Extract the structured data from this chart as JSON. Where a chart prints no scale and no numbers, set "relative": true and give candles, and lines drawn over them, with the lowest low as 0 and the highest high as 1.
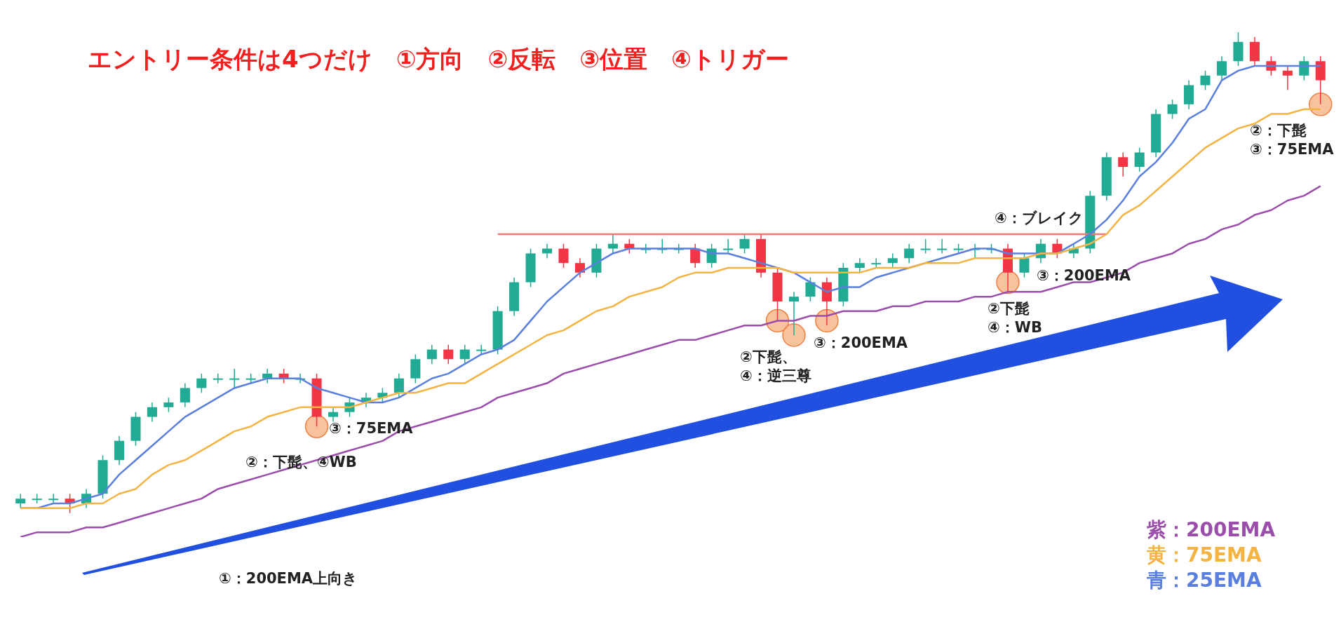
{
  "chart_data": {
    "type": "candlestick",
    "title": "エントリー条件は4つだけ　①方向　②反転　③位置　④トリガー",
    "relative": true,
    "legend": "bottom right",
    "categories": [
      null,
      null,
      null,
      null,
      null,
      null,
      null,
      null,
      null,
      null,
      null,
      null,
      null,
      null,
      null,
      null,
      null,
      null,
      null,
      null,
      null,
      null,
      null,
      null,
      null,
      null,
      null,
      null,
      null,
      null,
      null,
      null,
      null,
      null,
      null,
      null,
      null,
      null,
      null,
      null,
      null,
      null,
      null,
      null,
      null,
      null,
      null,
      null,
      null,
      null,
      null,
      null,
      null,
      null,
      null,
      null,
      null,
      null,
      null,
      null,
      null,
      null,
      null,
      null,
      null,
      null,
      null,
      null,
      null,
      null,
      null,
      null,
      null,
      null,
      null,
      null,
      null,
      null,
      null,
      null
    ],
    "ohlc": [
      [
        0.02,
        0.04,
        0.01,
        0.03
      ],
      [
        0.03,
        0.04,
        0.02,
        0.03
      ],
      [
        0.03,
        0.04,
        0.02,
        0.03
      ],
      [
        0.03,
        0.04,
        0,
        0.02
      ],
      [
        0.02,
        0.05,
        0.01,
        0.04
      ],
      [
        0.04,
        0.12,
        0.03,
        0.11
      ],
      [
        0.11,
        0.16,
        0.1,
        0.15
      ],
      [
        0.15,
        0.21,
        0.14,
        0.2
      ],
      [
        0.2,
        0.23,
        0.19,
        0.22
      ],
      [
        0.22,
        0.24,
        0.21,
        0.23
      ],
      [
        0.23,
        0.27,
        0.22,
        0.26
      ],
      [
        0.26,
        0.29,
        0.25,
        0.28
      ],
      [
        0.28,
        0.29,
        0.27,
        0.28
      ],
      [
        0.28,
        0.3,
        0.26,
        0.28
      ],
      [
        0.28,
        0.29,
        0.27,
        0.28
      ],
      [
        0.28,
        0.3,
        0.27,
        0.29
      ],
      [
        0.29,
        0.3,
        0.27,
        0.28
      ],
      [
        0.28,
        0.29,
        0.27,
        0.28
      ],
      [
        0.28,
        0.29,
        0.18,
        0.2
      ],
      [
        0.2,
        0.22,
        0.19,
        0.21
      ],
      [
        0.21,
        0.24,
        0.2,
        0.23
      ],
      [
        0.23,
        0.25,
        0.22,
        0.24
      ],
      [
        0.24,
        0.26,
        0.23,
        0.25
      ],
      [
        0.25,
        0.29,
        0.24,
        0.28
      ],
      [
        0.28,
        0.33,
        0.27,
        0.32
      ],
      [
        0.32,
        0.35,
        0.31,
        0.34
      ],
      [
        0.34,
        0.35,
        0.31,
        0.32
      ],
      [
        0.32,
        0.35,
        0.31,
        0.34
      ],
      [
        0.34,
        0.35,
        0.33,
        0.34
      ],
      [
        0.34,
        0.43,
        0.33,
        0.42
      ],
      [
        0.42,
        0.49,
        0.41,
        0.48
      ],
      [
        0.48,
        0.55,
        0.47,
        0.54
      ],
      [
        0.54,
        0.56,
        0.53,
        0.55
      ],
      [
        0.55,
        0.56,
        0.51,
        0.52
      ],
      [
        0.52,
        0.53,
        0.49,
        0.5
      ],
      [
        0.5,
        0.56,
        0.49,
        0.55
      ],
      [
        0.55,
        0.58,
        0.54,
        0.56
      ],
      [
        0.56,
        0.57,
        0.54,
        0.55
      ],
      [
        0.55,
        0.56,
        0.54,
        0.55
      ],
      [
        0.55,
        0.57,
        0.54,
        0.55
      ],
      [
        0.55,
        0.56,
        0.54,
        0.55
      ],
      [
        0.55,
        0.56,
        0.51,
        0.52
      ],
      [
        0.52,
        0.56,
        0.51,
        0.55
      ],
      [
        0.55,
        0.57,
        0.54,
        0.55
      ],
      [
        0.55,
        0.58,
        0.54,
        0.57
      ],
      [
        0.57,
        0.58,
        0.49,
        0.5
      ],
      [
        0.5,
        0.51,
        0.4,
        0.44
      ],
      [
        0.44,
        0.46,
        0.37,
        0.45
      ],
      [
        0.45,
        0.49,
        0.44,
        0.48
      ],
      [
        0.48,
        0.49,
        0.39,
        0.44
      ],
      [
        0.44,
        0.52,
        0.43,
        0.51
      ],
      [
        0.51,
        0.53,
        0.5,
        0.52
      ],
      [
        0.52,
        0.53,
        0.51,
        0.52
      ],
      [
        0.52,
        0.54,
        0.51,
        0.53
      ],
      [
        0.53,
        0.56,
        0.52,
        0.55
      ],
      [
        0.55,
        0.57,
        0.54,
        0.55
      ],
      [
        0.55,
        0.57,
        0.54,
        0.55
      ],
      [
        0.55,
        0.56,
        0.54,
        0.55
      ],
      [
        0.55,
        0.56,
        0.53,
        0.55
      ],
      [
        0.55,
        0.56,
        0.54,
        0.55
      ],
      [
        0.55,
        0.56,
        0.46,
        0.5
      ],
      [
        0.5,
        0.54,
        0.49,
        0.53
      ],
      [
        0.53,
        0.57,
        0.52,
        0.56
      ],
      [
        0.56,
        0.57,
        0.53,
        0.54
      ],
      [
        0.54,
        0.56,
        0.53,
        0.55
      ],
      [
        0.55,
        0.67,
        0.54,
        0.66
      ],
      [
        0.66,
        0.75,
        0.65,
        0.74
      ],
      [
        0.74,
        0.75,
        0.7,
        0.72
      ],
      [
        0.72,
        0.76,
        0.71,
        0.75
      ],
      [
        0.75,
        0.84,
        0.74,
        0.83
      ],
      [
        0.83,
        0.86,
        0.82,
        0.85
      ],
      [
        0.85,
        0.9,
        0.84,
        0.89
      ],
      [
        0.89,
        0.92,
        0.88,
        0.91
      ],
      [
        0.91,
        0.95,
        0.9,
        0.94
      ],
      [
        0.94,
        1.0,
        0.93,
        0.98
      ],
      [
        0.98,
        0.99,
        0.93,
        0.94
      ],
      [
        0.94,
        0.95,
        0.91,
        0.92
      ],
      [
        0.92,
        0.93,
        0.88,
        0.91
      ],
      [
        0.91,
        0.95,
        0.9,
        0.94
      ],
      [
        0.94,
        0.95,
        0.85,
        0.9
      ]
    ],
    "colors": [
      "#22ab94",
      "#22ab94",
      "#22ab94",
      "#f23645",
      "#22ab94",
      "#22ab94",
      "#22ab94",
      "#22ab94",
      "#22ab94",
      "#22ab94",
      "#22ab94",
      "#22ab94",
      "#22ab94",
      "#22ab94",
      "#22ab94",
      "#22ab94",
      "#f23645",
      "#22ab94",
      "#f23645",
      "#22ab94",
      "#22ab94",
      "#22ab94",
      "#22ab94",
      "#22ab94",
      "#22ab94",
      "#22ab94",
      "#f23645",
      "#22ab94",
      "#22ab94",
      "#22ab94",
      "#22ab94",
      "#22ab94",
      "#22ab94",
      "#f23645",
      "#f23645",
      "#22ab94",
      "#22ab94",
      "#f23645",
      "#22ab94",
      "#22ab94",
      "#22ab94",
      "#f23645",
      "#22ab94",
      "#22ab94",
      "#22ab94",
      "#f23645",
      "#f23645",
      "#22ab94",
      "#22ab94",
      "#f23645",
      "#22ab94",
      "#22ab94",
      "#22ab94",
      "#22ab94",
      "#22ab94",
      "#22ab94",
      "#22ab94",
      "#22ab94",
      "#22ab94",
      "#22ab94",
      "#f23645",
      "#22ab94",
      "#22ab94",
      "#f23645",
      "#22ab94",
      "#22ab94",
      "#22ab94",
      "#f23645",
      "#22ab94",
      "#22ab94",
      "#22ab94",
      "#22ab94",
      "#22ab94",
      "#22ab94",
      "#22ab94",
      "#f23645",
      "#f23645",
      "#f23645",
      "#22ab94",
      "#f23645"
    ],
    "series": [
      {
        "name": "紫：200EMA",
        "type": "line",
        "color": "#9b4dab",
        "values": [
          -0.05,
          -0.04,
          -0.04,
          -0.04,
          -0.03,
          -0.03,
          -0.02,
          -0.01,
          0,
          0.01,
          0.02,
          0.03,
          0.05,
          0.06,
          0.07,
          0.08,
          0.09,
          0.1,
          0.11,
          0.12,
          0.13,
          0.14,
          0.15,
          0.17,
          0.18,
          0.19,
          0.2,
          0.21,
          0.22,
          0.24,
          0.25,
          0.26,
          0.27,
          0.29,
          0.3,
          0.31,
          0.32,
          0.33,
          0.34,
          0.35,
          0.36,
          0.36,
          0.37,
          0.38,
          0.39,
          0.39,
          0.4,
          0.4,
          0.41,
          0.41,
          0.42,
          0.42,
          0.42,
          0.43,
          0.43,
          0.44,
          0.44,
          0.44,
          0.45,
          0.45,
          0.46,
          0.46,
          0.46,
          0.47,
          0.48,
          0.48,
          0.49,
          0.5,
          0.52,
          0.53,
          0.54,
          0.56,
          0.57,
          0.59,
          0.6,
          0.62,
          0.63,
          0.65,
          0.66,
          0.68
        ]
      },
      {
        "name": "黄：75EMA",
        "type": "line",
        "color": "#f5b342",
        "values": [
          0.01,
          0.01,
          0.01,
          0.01,
          0.02,
          0.02,
          0.04,
          0.05,
          0.08,
          0.1,
          0.11,
          0.13,
          0.15,
          0.17,
          0.18,
          0.2,
          0.21,
          0.22,
          0.22,
          0.22,
          0.22,
          0.23,
          0.24,
          0.25,
          0.25,
          0.26,
          0.27,
          0.27,
          0.29,
          0.31,
          0.33,
          0.35,
          0.37,
          0.38,
          0.4,
          0.42,
          0.43,
          0.45,
          0.46,
          0.47,
          0.49,
          0.5,
          0.5,
          0.51,
          0.51,
          0.51,
          0.51,
          0.5,
          0.5,
          0.5,
          0.5,
          0.5,
          0.51,
          0.51,
          0.51,
          0.52,
          0.52,
          0.52,
          0.53,
          0.53,
          0.53,
          0.53,
          0.54,
          0.54,
          0.55,
          0.56,
          0.58,
          0.62,
          0.64,
          0.67,
          0.7,
          0.73,
          0.76,
          0.78,
          0.8,
          0.81,
          0.83,
          0.83,
          0.84,
          0.84
        ]
      },
      {
        "name": "青：25EMA",
        "type": "line",
        "color": "#5b7fde",
        "values": [
          0.01,
          0.01,
          0.02,
          0.02,
          0.03,
          0.04,
          0.08,
          0.11,
          0.14,
          0.17,
          0.2,
          0.22,
          0.24,
          0.26,
          0.27,
          0.28,
          0.28,
          0.28,
          0.26,
          0.25,
          0.24,
          0.23,
          0.23,
          0.24,
          0.26,
          0.28,
          0.29,
          0.31,
          0.33,
          0.34,
          0.36,
          0.4,
          0.44,
          0.47,
          0.5,
          0.52,
          0.54,
          0.55,
          0.55,
          0.55,
          0.55,
          0.55,
          0.54,
          0.54,
          0.53,
          0.52,
          0.51,
          0.5,
          0.48,
          0.46,
          0.47,
          0.47,
          0.49,
          0.5,
          0.51,
          0.52,
          0.53,
          0.54,
          0.55,
          0.55,
          0.54,
          0.54,
          0.54,
          0.54,
          0.56,
          0.58,
          0.61,
          0.65,
          0.7,
          0.73,
          0.77,
          0.82,
          0.84,
          0.9,
          0.92,
          0.93,
          0.93,
          0.93,
          0.93,
          0.93
        ]
      },
      {
        "type": "line",
        "color": "#f77672",
        "values": [
          null,
          null,
          null,
          null,
          null,
          null,
          null,
          null,
          null,
          null,
          null,
          null,
          null,
          null,
          null,
          null,
          null,
          null,
          null,
          null,
          null,
          null,
          null,
          null,
          null,
          null,
          null,
          null,
          null,
          0.58,
          0.58,
          0.58,
          0.58,
          0.58,
          0.58,
          0.58,
          0.58,
          0.58,
          0.58,
          0.58,
          0.58,
          0.58,
          0.58,
          0.58,
          0.58,
          0.58,
          0.58,
          0.58,
          0.58,
          0.58,
          0.58,
          0.58,
          0.58,
          0.58,
          0.58,
          0.58,
          0.58,
          0.58,
          0.58,
          0.58,
          0.58,
          0.58,
          0.58,
          0.58,
          0.58,
          0.58,
          0.58,
          null,
          null,
          null,
          null,
          null,
          null,
          null,
          null,
          null,
          null,
          null,
          null,
          null
        ]
      },
      {
        "type": "scatter",
        "color": "#f4a46c",
        "marker": "circle",
        "values": [
          null,
          null,
          null,
          null,
          null,
          null,
          null,
          null,
          null,
          null,
          null,
          null,
          null,
          null,
          null,
          null,
          null,
          null,
          0.18,
          null,
          null,
          null,
          null,
          null,
          null,
          null,
          null,
          null,
          null,
          null,
          null,
          null,
          null,
          null,
          null,
          null,
          null,
          null,
          null,
          null,
          null,
          null,
          null,
          null,
          null,
          null,
          0.4,
          0.37,
          null,
          0.4,
          null,
          null,
          null,
          null,
          null,
          null,
          null,
          null,
          null,
          null,
          0.48,
          null,
          null,
          null,
          null,
          null,
          null,
          null,
          null,
          null,
          null,
          null,
          null,
          null,
          null,
          null,
          null,
          null,
          null,
          0.85
        ]
      }
    ],
    "annotations": [
      "②：下髭、④WB",
      "③：75EMA",
      "②下髭、\n④：逆三尊",
      "③：200EMA",
      "②下髭\n④：WB",
      "③：200EMA",
      "④：ブレイク",
      "②：下髭\n③：75EMA",
      "①：200EMA上向き"
    ]
  }
}
